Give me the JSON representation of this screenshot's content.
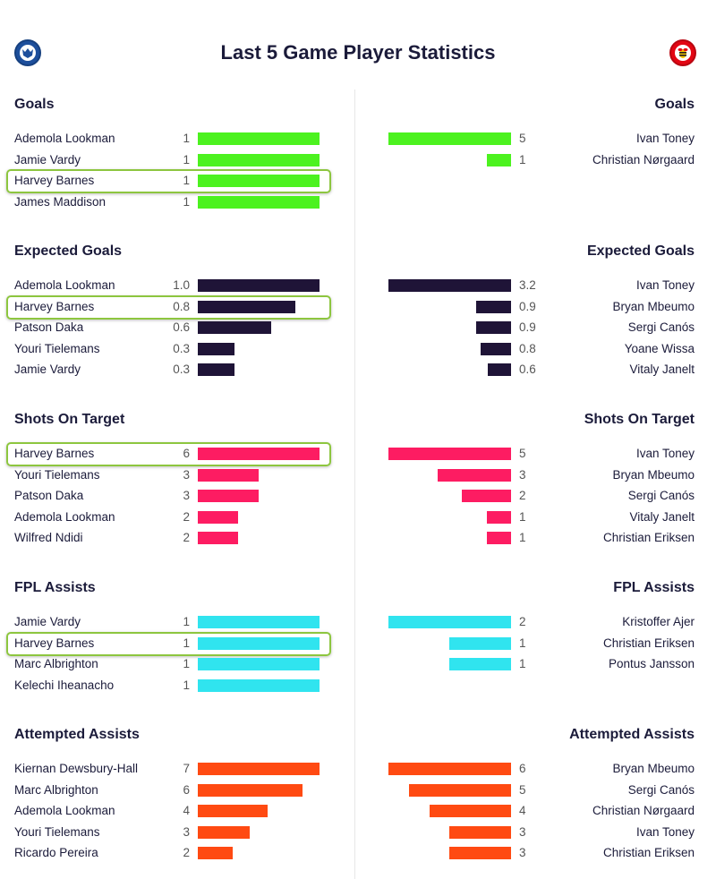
{
  "title": "Last 5 Game Player Statistics",
  "colors": {
    "goals": "#4cf21f",
    "expected_goals": "#1f1437",
    "shots_on_target": "#fd1c62",
    "fpl_assists": "#30e4ef",
    "attempted_assists": "#ff4a12",
    "highlight": "#8dc63f"
  },
  "badges": {
    "left": "shield-crest-icon",
    "right": "bee-crest-icon"
  },
  "highlight_player": "Harvey Barnes",
  "chart_data": [
    {
      "type": "bar",
      "key": "goals",
      "title": "Goals",
      "left": {
        "max": 1,
        "players": [
          {
            "name": "Ademola Lookman",
            "value": "1"
          },
          {
            "name": "Jamie Vardy",
            "value": "1"
          },
          {
            "name": "Harvey Barnes",
            "value": "1"
          },
          {
            "name": "James Maddison",
            "value": "1"
          }
        ]
      },
      "right": {
        "max": 5,
        "players": [
          {
            "name": "Ivan Toney",
            "value": "5"
          },
          {
            "name": "Christian Nørgaard",
            "value": "1"
          }
        ]
      }
    },
    {
      "type": "bar",
      "key": "expected_goals",
      "title": "Expected Goals",
      "left": {
        "max": 1.0,
        "players": [
          {
            "name": "Ademola Lookman",
            "value": "1.0"
          },
          {
            "name": "Harvey Barnes",
            "value": "0.8"
          },
          {
            "name": "Patson Daka",
            "value": "0.6"
          },
          {
            "name": "Youri Tielemans",
            "value": "0.3"
          },
          {
            "name": "Jamie Vardy",
            "value": "0.3"
          }
        ]
      },
      "right": {
        "max": 3.2,
        "players": [
          {
            "name": "Ivan Toney",
            "value": "3.2"
          },
          {
            "name": "Bryan Mbeumo",
            "value": "0.9"
          },
          {
            "name": "Sergi Canós",
            "value": "0.9"
          },
          {
            "name": "Yoane Wissa",
            "value": "0.8"
          },
          {
            "name": "Vitaly Janelt",
            "value": "0.6"
          }
        ]
      }
    },
    {
      "type": "bar",
      "key": "shots_on_target",
      "title": "Shots On Target",
      "left": {
        "max": 6,
        "players": [
          {
            "name": "Harvey Barnes",
            "value": "6"
          },
          {
            "name": "Youri Tielemans",
            "value": "3"
          },
          {
            "name": "Patson Daka",
            "value": "3"
          },
          {
            "name": "Ademola Lookman",
            "value": "2"
          },
          {
            "name": "Wilfred Ndidi",
            "value": "2"
          }
        ]
      },
      "right": {
        "max": 5,
        "players": [
          {
            "name": "Ivan Toney",
            "value": "5"
          },
          {
            "name": "Bryan Mbeumo",
            "value": "3"
          },
          {
            "name": "Sergi Canós",
            "value": "2"
          },
          {
            "name": "Vitaly Janelt",
            "value": "1"
          },
          {
            "name": "Christian Eriksen",
            "value": "1"
          }
        ]
      }
    },
    {
      "type": "bar",
      "key": "fpl_assists",
      "title": "FPL Assists",
      "left": {
        "max": 1,
        "players": [
          {
            "name": "Jamie Vardy",
            "value": "1"
          },
          {
            "name": "Harvey Barnes",
            "value": "1"
          },
          {
            "name": "Marc Albrighton",
            "value": "1"
          },
          {
            "name": "Kelechi Iheanacho",
            "value": "1"
          }
        ]
      },
      "right": {
        "max": 2,
        "players": [
          {
            "name": "Kristoffer Ajer",
            "value": "2"
          },
          {
            "name": "Christian Eriksen",
            "value": "1"
          },
          {
            "name": "Pontus Jansson",
            "value": "1"
          }
        ]
      }
    },
    {
      "type": "bar",
      "key": "attempted_assists",
      "title": "Attempted Assists",
      "left": {
        "max": 7,
        "players": [
          {
            "name": "Kiernan Dewsbury-Hall",
            "value": "7"
          },
          {
            "name": "Marc Albrighton",
            "value": "6"
          },
          {
            "name": "Ademola Lookman",
            "value": "4"
          },
          {
            "name": "Youri Tielemans",
            "value": "3"
          },
          {
            "name": "Ricardo Pereira",
            "value": "2"
          }
        ]
      },
      "right": {
        "max": 6,
        "players": [
          {
            "name": "Bryan Mbeumo",
            "value": "6"
          },
          {
            "name": "Sergi Canós",
            "value": "5"
          },
          {
            "name": "Christian Nørgaard",
            "value": "4"
          },
          {
            "name": "Ivan Toney",
            "value": "3"
          },
          {
            "name": "Christian Eriksen",
            "value": "3"
          }
        ]
      }
    }
  ]
}
